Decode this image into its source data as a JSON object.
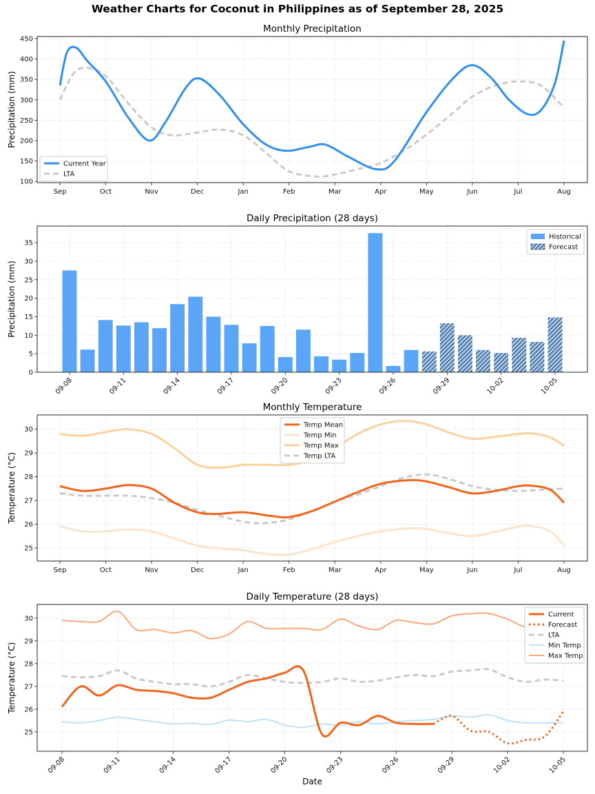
{
  "suptitle": "Weather Charts for Coconut in Philippines as of September 28, 2025",
  "colors": {
    "current_blue": "#2f8ff0",
    "lta_gray": "#c8cacc",
    "hist_bar": "#5aa5f8",
    "forecast_bar": "#9ec9f7",
    "temp_mean": "#f26419",
    "temp_min_monthly": "#fde3cc",
    "temp_max_monthly": "#fbd29d",
    "daily_min": "#bfe0fb",
    "daily_max": "#f8a87a"
  },
  "chart_data": [
    {
      "id": "monthly_precip",
      "type": "line",
      "title": "Monthly Precipitation",
      "xlabel": "",
      "ylabel": "Precipitation (mm)",
      "categories": [
        "Sep",
        "Oct",
        "Nov",
        "Dec",
        "Jan",
        "Feb",
        "Mar",
        "Apr",
        "May",
        "Jun",
        "Jul",
        "Aug"
      ],
      "ylim": [
        97,
        455
      ],
      "yticks": [
        100,
        150,
        200,
        250,
        300,
        350,
        400,
        450
      ],
      "grid": true,
      "legend": "lower-left",
      "series": [
        {
          "name": "Current Year",
          "style": "solid",
          "values": [
            335,
            375,
            200,
            350,
            240,
            175,
            190,
            130,
            260,
            385,
            270,
            445
          ],
          "curve": [
            [
              0,
              335
            ],
            [
              0.15,
              415
            ],
            [
              0.35,
              428
            ],
            [
              0.6,
              395
            ],
            [
              1,
              345
            ],
            [
              1.5,
              255
            ],
            [
              1.95,
              200
            ],
            [
              2.3,
              245
            ],
            [
              2.75,
              330
            ],
            [
              3.05,
              352
            ],
            [
              3.5,
              310
            ],
            [
              4,
              240
            ],
            [
              4.5,
              190
            ],
            [
              4.95,
              175
            ],
            [
              5.45,
              185
            ],
            [
              5.8,
              190
            ],
            [
              6.3,
              160
            ],
            [
              6.9,
              130
            ],
            [
              7.3,
              150
            ],
            [
              8,
              270
            ],
            [
              8.6,
              355
            ],
            [
              9,
              385
            ],
            [
              9.4,
              355
            ],
            [
              9.8,
              300
            ],
            [
              10.2,
              265
            ],
            [
              10.5,
              275
            ],
            [
              10.8,
              340
            ],
            [
              11,
              445
            ]
          ]
        },
        {
          "name": "LTA",
          "style": "dashed",
          "values": [
            300,
            360,
            230,
            220,
            210,
            125,
            115,
            145,
            215,
            310,
            345,
            280
          ],
          "curve": [
            [
              0,
              300
            ],
            [
              0.3,
              365
            ],
            [
              0.6,
              378
            ],
            [
              1,
              358
            ],
            [
              1.5,
              290
            ],
            [
              2,
              232
            ],
            [
              2.45,
              213
            ],
            [
              3,
              220
            ],
            [
              3.5,
              227
            ],
            [
              4,
              213
            ],
            [
              4.5,
              170
            ],
            [
              5,
              125
            ],
            [
              5.6,
              112
            ],
            [
              6,
              117
            ],
            [
              6.5,
              130
            ],
            [
              7,
              145
            ],
            [
              7.5,
              175
            ],
            [
              8,
              215
            ],
            [
              8.6,
              270
            ],
            [
              9,
              308
            ],
            [
              9.5,
              335
            ],
            [
              10,
              345
            ],
            [
              10.5,
              335
            ],
            [
              11,
              280
            ]
          ]
        }
      ]
    },
    {
      "id": "daily_precip",
      "type": "bar",
      "title": "Daily Precipitation (28 days)",
      "xlabel": "",
      "ylabel": "Precipitation (mm)",
      "ylim": [
        0,
        39.5
      ],
      "yticks": [
        0,
        5,
        10,
        15,
        20,
        25,
        30,
        35
      ],
      "xtick_labels": [
        "09-08",
        "09-11",
        "09-14",
        "09-17",
        "09-20",
        "09-23",
        "09-26",
        "09-29",
        "10-02",
        "10-05"
      ],
      "grid": true,
      "legend": "top-right",
      "categories": [
        "09-08",
        "09-09",
        "09-10",
        "09-11",
        "09-12",
        "09-13",
        "09-14",
        "09-15",
        "09-16",
        "09-17",
        "09-18",
        "09-19",
        "09-20",
        "09-21",
        "09-22",
        "09-23",
        "09-24",
        "09-25",
        "09-26",
        "09-27",
        "09-28",
        "09-29",
        "09-30",
        "10-01",
        "10-02",
        "10-03",
        "10-04",
        "10-05"
      ],
      "values": [
        27.5,
        6.1,
        14.1,
        12.6,
        13.5,
        11.9,
        18.4,
        20.4,
        15.0,
        12.8,
        7.8,
        12.5,
        4.1,
        11.5,
        4.3,
        3.4,
        5.2,
        37.6,
        1.7,
        6.0,
        5.6,
        13.2,
        10.0,
        6.0,
        5.2,
        9.3,
        8.2,
        14.8
      ],
      "forecast_start_index": 20,
      "legend_entries": [
        "Historical",
        "Forecast"
      ]
    },
    {
      "id": "monthly_temp",
      "type": "line",
      "title": "Monthly Temperature",
      "xlabel": "",
      "ylabel": "Temperature (°C)",
      "categories": [
        "Sep",
        "Oct",
        "Nov",
        "Dec",
        "Jan",
        "Feb",
        "Mar",
        "Apr",
        "May",
        "Jun",
        "Jul",
        "Aug"
      ],
      "ylim": [
        24.45,
        30.6
      ],
      "yticks": [
        25,
        26,
        27,
        28,
        29,
        30
      ],
      "grid": true,
      "legend": "top-center",
      "series": [
        {
          "name": "Temp Mean",
          "style": "solid",
          "values": [
            27.6,
            27.5,
            27.5,
            26.5,
            26.5,
            26.3,
            26.95,
            27.7,
            27.8,
            27.3,
            27.6,
            26.9
          ],
          "curve": [
            [
              0,
              27.6
            ],
            [
              0.5,
              27.4
            ],
            [
              1,
              27.5
            ],
            [
              1.5,
              27.65
            ],
            [
              2,
              27.5
            ],
            [
              2.5,
              26.9
            ],
            [
              3,
              26.5
            ],
            [
              3.4,
              26.43
            ],
            [
              4,
              26.5
            ],
            [
              4.6,
              26.35
            ],
            [
              5,
              26.3
            ],
            [
              5.5,
              26.55
            ],
            [
              6,
              26.95
            ],
            [
              6.5,
              27.35
            ],
            [
              7,
              27.7
            ],
            [
              7.6,
              27.85
            ],
            [
              8,
              27.8
            ],
            [
              8.5,
              27.55
            ],
            [
              9,
              27.3
            ],
            [
              9.5,
              27.4
            ],
            [
              10,
              27.6
            ],
            [
              10.3,
              27.62
            ],
            [
              10.7,
              27.45
            ],
            [
              11,
              26.9
            ]
          ]
        },
        {
          "name": "Temp Min",
          "style": "solid",
          "values": [
            25.9,
            25.7,
            25.7,
            25.1,
            24.9,
            24.7,
            25.25,
            25.7,
            25.8,
            25.5,
            25.9,
            25.1
          ],
          "curve": [
            [
              0,
              25.9
            ],
            [
              0.5,
              25.7
            ],
            [
              1,
              25.7
            ],
            [
              1.5,
              25.78
            ],
            [
              2,
              25.7
            ],
            [
              2.5,
              25.4
            ],
            [
              3,
              25.1
            ],
            [
              3.5,
              24.98
            ],
            [
              4,
              24.9
            ],
            [
              4.5,
              24.75
            ],
            [
              5,
              24.72
            ],
            [
              5.5,
              24.95
            ],
            [
              6,
              25.25
            ],
            [
              6.5,
              25.5
            ],
            [
              7,
              25.7
            ],
            [
              7.6,
              25.82
            ],
            [
              8,
              25.8
            ],
            [
              8.5,
              25.62
            ],
            [
              9,
              25.5
            ],
            [
              9.5,
              25.68
            ],
            [
              10,
              25.9
            ],
            [
              10.3,
              25.92
            ],
            [
              10.7,
              25.7
            ],
            [
              11,
              25.1
            ]
          ]
        },
        {
          "name": "Temp Max",
          "style": "solid",
          "values": [
            29.8,
            29.9,
            29.8,
            28.5,
            28.5,
            28.5,
            29.2,
            30.2,
            30.2,
            29.6,
            29.8,
            29.3
          ],
          "curve": [
            [
              0,
              29.8
            ],
            [
              0.5,
              29.72
            ],
            [
              1,
              29.88
            ],
            [
              1.5,
              30.0
            ],
            [
              2,
              29.8
            ],
            [
              2.5,
              29.2
            ],
            [
              3,
              28.5
            ],
            [
              3.5,
              28.38
            ],
            [
              4,
              28.5
            ],
            [
              4.5,
              28.5
            ],
            [
              5,
              28.5
            ],
            [
              5.5,
              28.7
            ],
            [
              6,
              29.2
            ],
            [
              6.5,
              29.8
            ],
            [
              7,
              30.2
            ],
            [
              7.5,
              30.35
            ],
            [
              8,
              30.2
            ],
            [
              8.5,
              29.85
            ],
            [
              9,
              29.6
            ],
            [
              9.5,
              29.68
            ],
            [
              10,
              29.8
            ],
            [
              10.3,
              29.82
            ],
            [
              10.7,
              29.65
            ],
            [
              11,
              29.3
            ]
          ]
        },
        {
          "name": "Temp LTA",
          "style": "dashed",
          "values": [
            27.3,
            27.2,
            27.1,
            26.6,
            26.1,
            26.2,
            26.95,
            27.6,
            28.1,
            27.6,
            27.4,
            27.5
          ],
          "curve": [
            [
              0,
              27.3
            ],
            [
              0.5,
              27.2
            ],
            [
              1,
              27.2
            ],
            [
              1.5,
              27.2
            ],
            [
              2,
              27.1
            ],
            [
              2.5,
              26.9
            ],
            [
              3,
              26.6
            ],
            [
              3.5,
              26.35
            ],
            [
              4,
              26.1
            ],
            [
              4.5,
              26.05
            ],
            [
              5,
              26.2
            ],
            [
              5.5,
              26.55
            ],
            [
              6,
              26.95
            ],
            [
              6.5,
              27.25
            ],
            [
              7,
              27.6
            ],
            [
              7.5,
              27.95
            ],
            [
              8,
              28.1
            ],
            [
              8.5,
              27.9
            ],
            [
              9,
              27.6
            ],
            [
              9.5,
              27.45
            ],
            [
              10,
              27.4
            ],
            [
              10.5,
              27.45
            ],
            [
              11,
              27.5
            ]
          ]
        }
      ]
    },
    {
      "id": "daily_temp",
      "type": "line",
      "title": "Daily Temperature (28 days)",
      "xlabel": "Date",
      "ylabel": "Temperature (°C)",
      "ylim": [
        24.15,
        30.6
      ],
      "yticks": [
        25,
        26,
        27,
        28,
        29,
        30
      ],
      "xtick_labels": [
        "09-08",
        "09-11",
        "09-14",
        "09-17",
        "09-20",
        "09-23",
        "09-26",
        "09-29",
        "10-02",
        "10-05"
      ],
      "categories": [
        "09-08",
        "09-09",
        "09-10",
        "09-11",
        "09-12",
        "09-13",
        "09-14",
        "09-15",
        "09-16",
        "09-17",
        "09-18",
        "09-19",
        "09-20",
        "09-21",
        "09-22",
        "09-23",
        "09-24",
        "09-25",
        "09-26",
        "09-27",
        "09-28",
        "09-29",
        "09-30",
        "10-01",
        "10-02",
        "10-03",
        "10-04",
        "10-05"
      ],
      "grid": true,
      "legend": "top-right",
      "series": [
        {
          "name": "Current",
          "style": "solid",
          "start_index": 0,
          "values": [
            26.1,
            27.0,
            26.6,
            27.05,
            26.85,
            26.8,
            26.7,
            26.5,
            26.5,
            26.85,
            27.2,
            27.35,
            27.6,
            27.7,
            24.9,
            25.4,
            25.3,
            25.7,
            25.4,
            25.35,
            25.35
          ]
        },
        {
          "name": "Forecast",
          "style": "dotted",
          "start_index": 20,
          "values": [
            25.35,
            25.7,
            25.05,
            25.0,
            24.5,
            24.65,
            24.8,
            25.9
          ]
        },
        {
          "name": "LTA",
          "style": "dashed",
          "start_index": 0,
          "values": [
            27.45,
            27.4,
            27.45,
            27.7,
            27.35,
            27.2,
            27.1,
            27.1,
            27.0,
            27.2,
            27.5,
            27.35,
            27.2,
            27.15,
            27.2,
            27.35,
            27.2,
            27.25,
            27.4,
            27.5,
            27.45,
            27.65,
            27.7,
            27.75,
            27.4,
            27.2,
            27.3,
            27.25
          ]
        },
        {
          "name": "Min Temp",
          "style": "solid",
          "start_index": 0,
          "values": [
            25.45,
            25.4,
            25.5,
            25.65,
            25.55,
            25.45,
            25.35,
            25.38,
            25.33,
            25.52,
            25.45,
            25.55,
            25.3,
            25.2,
            25.35,
            25.3,
            25.45,
            25.35,
            25.45,
            25.5,
            25.55,
            25.7,
            25.65,
            25.75,
            25.5,
            25.4,
            25.4,
            25.4
          ]
        },
        {
          "name": "Max Temp",
          "style": "solid",
          "start_index": 0,
          "values": [
            29.9,
            29.85,
            29.85,
            30.3,
            29.5,
            29.5,
            29.35,
            29.45,
            29.1,
            29.3,
            29.85,
            29.55,
            29.55,
            29.55,
            29.5,
            29.95,
            29.65,
            29.5,
            29.9,
            29.8,
            29.75,
            30.1,
            30.2,
            30.2,
            29.95,
            29.6,
            29.65,
            29.6
          ]
        }
      ]
    }
  ]
}
